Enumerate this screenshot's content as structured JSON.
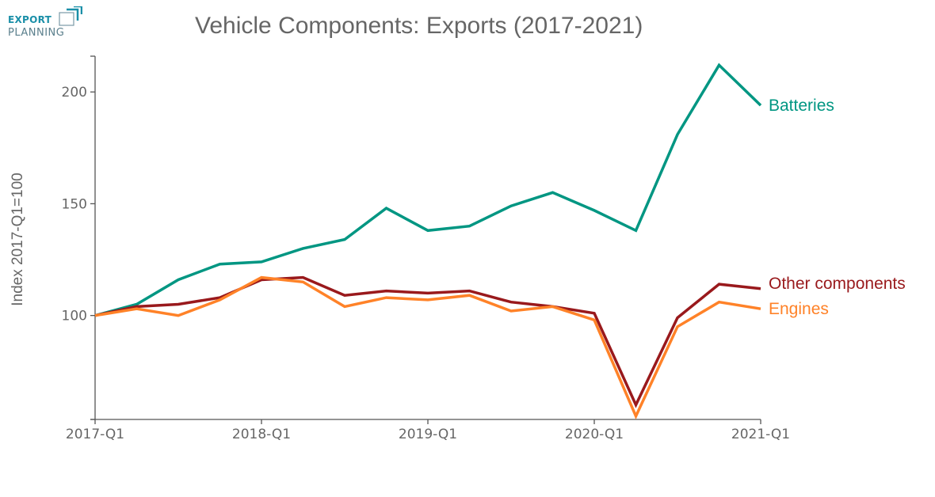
{
  "logo": {
    "line1": "EXPORT",
    "line2": "PLANNING",
    "brand_color": "#1a8fa8"
  },
  "chart_data": {
    "type": "line",
    "title": "Vehicle Components: Exports (2017-2021)",
    "xlabel": "",
    "ylabel": "Index 2017-Q1=100",
    "x": [
      "2017-Q1",
      "2017-Q2",
      "2017-Q3",
      "2017-Q4",
      "2018-Q1",
      "2018-Q2",
      "2018-Q3",
      "2018-Q4",
      "2019-Q1",
      "2019-Q2",
      "2019-Q3",
      "2019-Q4",
      "2020-Q1",
      "2020-Q2",
      "2020-Q3",
      "2020-Q4",
      "2021-Q1"
    ],
    "x_ticks": [
      "2017-Q1",
      "2018-Q1",
      "2019-Q1",
      "2020-Q1",
      "2021-Q1"
    ],
    "y_ticks": [
      100,
      150,
      200
    ],
    "ylim": [
      53.5,
      216
    ],
    "grid": false,
    "legend": "inline-right",
    "series": [
      {
        "name": "Batteries",
        "color": "#009682",
        "values": [
          100,
          105,
          116,
          123,
          124,
          130,
          134,
          148,
          138,
          140,
          149,
          155,
          147,
          138,
          181,
          212,
          194
        ]
      },
      {
        "name": "Other components",
        "color": "#99191c",
        "values": [
          100,
          104,
          105,
          108,
          116,
          117,
          109,
          111,
          110,
          111,
          106,
          104,
          101,
          60,
          99,
          114,
          112
        ]
      },
      {
        "name": "Engines",
        "color": "#ff8228",
        "values": [
          100,
          103,
          100,
          107,
          117,
          115,
          104,
          108,
          107,
          109,
          102,
          104,
          98,
          55,
          95,
          106,
          103
        ]
      }
    ]
  }
}
